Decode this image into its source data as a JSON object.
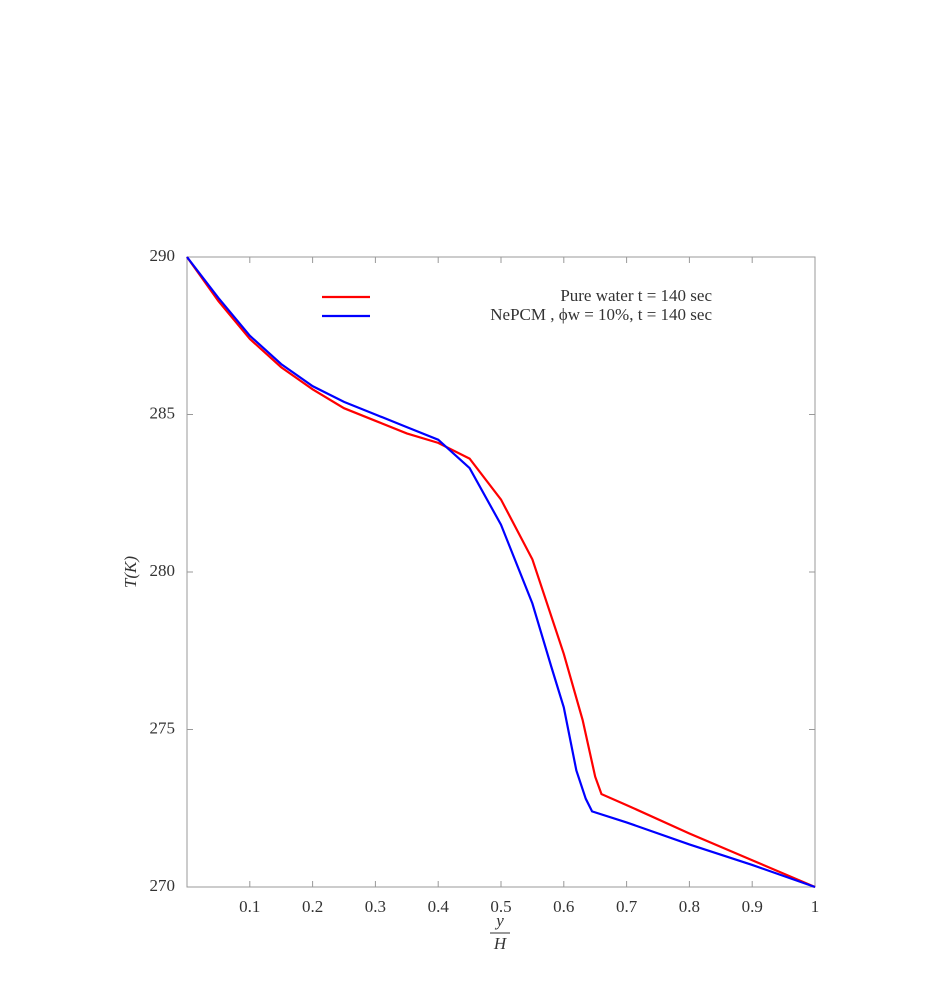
{
  "chart_data": {
    "type": "line",
    "xlabel": {
      "numerator": "y",
      "denominator": "H"
    },
    "ylabel": "T(K)",
    "xlim": [
      0,
      1
    ],
    "xticks": [
      0.1,
      0.2,
      0.3,
      0.4,
      0.5,
      0.6,
      0.7,
      0.8,
      0.9,
      1
    ],
    "ylim": [
      270,
      290
    ],
    "yticks": [
      270,
      275,
      280,
      285,
      290
    ],
    "grid": false,
    "legend": "upper right",
    "series": [
      {
        "name": "Pure water t = 140 sec",
        "color": "#ff0000",
        "x": [
          0,
          0.05,
          0.1,
          0.15,
          0.2,
          0.25,
          0.3,
          0.35,
          0.4,
          0.45,
          0.5,
          0.55,
          0.6,
          0.63,
          0.65,
          0.66,
          0.7,
          0.8,
          0.9,
          1
        ],
        "values": [
          290,
          288.6,
          287.4,
          286.5,
          285.8,
          285.2,
          284.8,
          284.4,
          284.1,
          283.6,
          282.3,
          280.4,
          277.4,
          275.3,
          273.5,
          272.95,
          272.6,
          271.7,
          270.85,
          270
        ]
      },
      {
        "name": "NePCM , ϕw = 10%, t = 140 sec",
        "color": "#0000ff",
        "x": [
          0,
          0.05,
          0.1,
          0.15,
          0.2,
          0.25,
          0.3,
          0.35,
          0.4,
          0.45,
          0.5,
          0.55,
          0.58,
          0.6,
          0.62,
          0.635,
          0.645,
          0.7,
          0.8,
          0.9,
          1
        ],
        "values": [
          290,
          288.7,
          287.5,
          286.6,
          285.9,
          285.4,
          285.0,
          284.6,
          284.2,
          283.3,
          281.5,
          279.0,
          277.0,
          275.7,
          273.7,
          272.8,
          272.4,
          272.05,
          271.35,
          270.7,
          270
        ]
      }
    ]
  }
}
